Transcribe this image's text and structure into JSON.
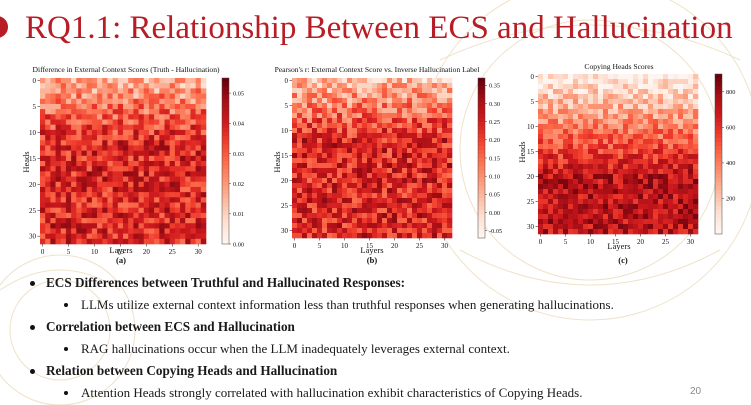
{
  "slide": {
    "title": "RQ1.1: Relationship Between ECS and Hallucination",
    "page_number": "20",
    "accent_color": "#b81c24"
  },
  "bullets": [
    {
      "heading": "ECS Differences between Truthful and Hallucinated Responses:",
      "sub": "LLMs utilize external context information less than truthful responses when generating hallucinations."
    },
    {
      "heading": "Correlation between ECS and Hallucination",
      "sub": "RAG hallucinations occur when the LLM inadequately leverages external context."
    },
    {
      "heading": "Relation between Copying Heads and Hallucination",
      "sub": "Attention Heads strongly correlated with hallucination exhibit characteristics of Copying Heads."
    }
  ],
  "chart_data": [
    {
      "type": "heatmap",
      "panel_label": "(a)",
      "title": "Difference in External Context Scores (Truth - Hallucination)",
      "xlabel": "Layers",
      "ylabel": "Heads",
      "x_ticks": [
        "0",
        "5",
        "10",
        "15",
        "20",
        "25",
        "30"
      ],
      "y_ticks": [
        "0",
        "5",
        "10",
        "15",
        "20",
        "25",
        "30"
      ],
      "grid_size": 32,
      "colorbar_ticks": [
        "0.05",
        "0.04",
        "0.03",
        "0.02",
        "0.01",
        "0.00"
      ],
      "value_range": [
        0.0,
        0.055
      ],
      "colormap": "Reds",
      "pattern": "lighter rows near top (heads 0-8), darker toward bottom"
    },
    {
      "type": "heatmap",
      "panel_label": "(b)",
      "title": "Pearson's r: External Context Score vs. Inverse Hallucination Label",
      "xlabel": "Layers",
      "ylabel": "Heads",
      "x_ticks": [
        "0",
        "5",
        "10",
        "15",
        "20",
        "25",
        "30"
      ],
      "y_ticks": [
        "0",
        "5",
        "10",
        "15",
        "20",
        "25",
        "30"
      ],
      "grid_size": 32,
      "colorbar_ticks": [
        "0.35",
        "0.30",
        "0.25",
        "0.20",
        "0.15",
        "0.10",
        "0.05",
        "0.00",
        "-0.05"
      ],
      "value_range": [
        -0.07,
        0.37
      ],
      "colormap": "Reds",
      "pattern": "lighter rows near top, darker toward bottom"
    },
    {
      "type": "heatmap",
      "panel_label": "(c)",
      "title": "Copying Heads Scores",
      "xlabel": "Layers",
      "ylabel": "Heads",
      "x_ticks": [
        "0",
        "5",
        "10",
        "15",
        "20",
        "25",
        "30"
      ],
      "y_ticks": [
        "0",
        "5",
        "10",
        "15",
        "20",
        "25",
        "30"
      ],
      "grid_size": 32,
      "colorbar_ticks": [
        "800",
        "600",
        "400",
        "200"
      ],
      "value_range": [
        0,
        900
      ],
      "colormap": "Reds",
      "pattern": "very light top rows (heads 0-8), dark red bottom rows"
    }
  ]
}
